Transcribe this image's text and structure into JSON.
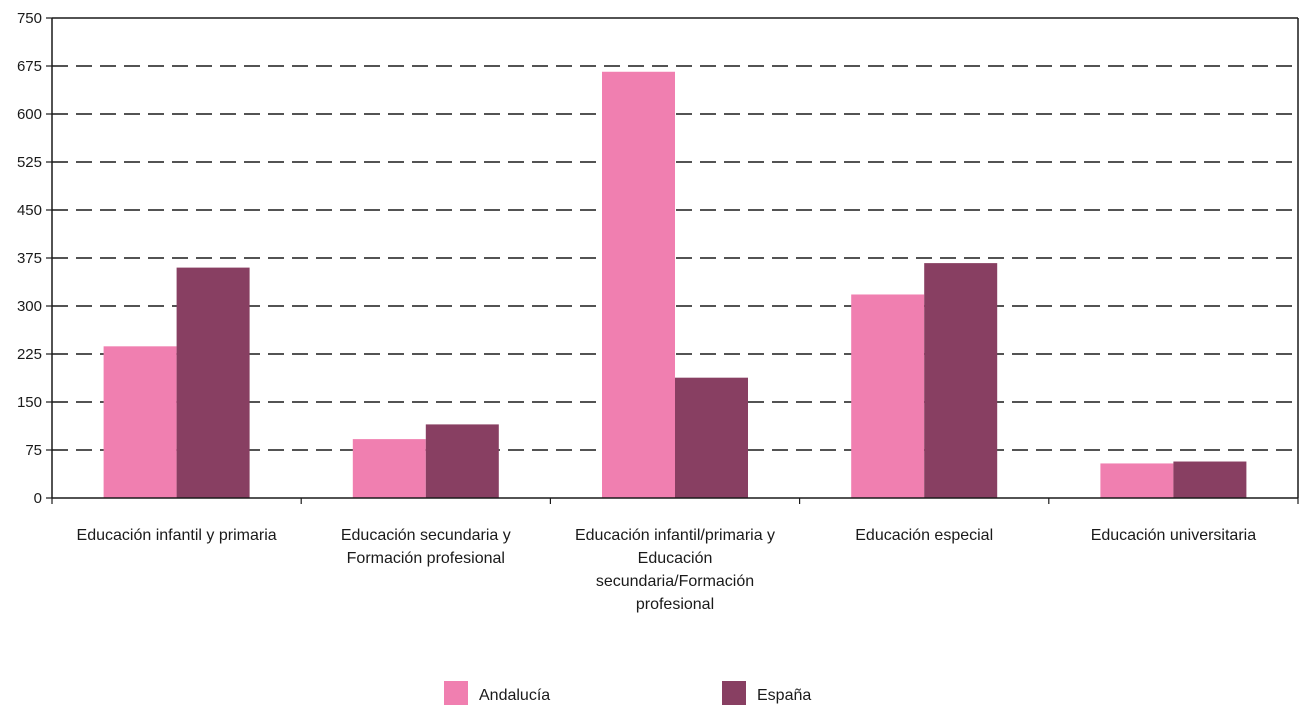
{
  "chart_data": {
    "type": "bar",
    "categories": [
      [
        "Educación infantil y primaria"
      ],
      [
        "Educación secundaria y",
        "Formación profesional"
      ],
      [
        "Educación infantil/primaria y",
        "Educación",
        "secundaria/Formación",
        "profesional"
      ],
      [
        "Educación especial"
      ],
      [
        "Educación universitaria"
      ]
    ],
    "series": [
      {
        "name": "Andalucía",
        "color": "#f07fb0",
        "values": [
          237,
          92,
          666,
          318,
          54
        ]
      },
      {
        "name": "España",
        "color": "#883f62",
        "values": [
          360,
          115,
          188,
          367,
          57
        ]
      }
    ],
    "ylim": [
      0,
      750
    ],
    "yticks": [
      0,
      75,
      150,
      225,
      300,
      375,
      450,
      525,
      600,
      675,
      750
    ],
    "grid": "dashed horizontal",
    "legend_position": "bottom"
  }
}
